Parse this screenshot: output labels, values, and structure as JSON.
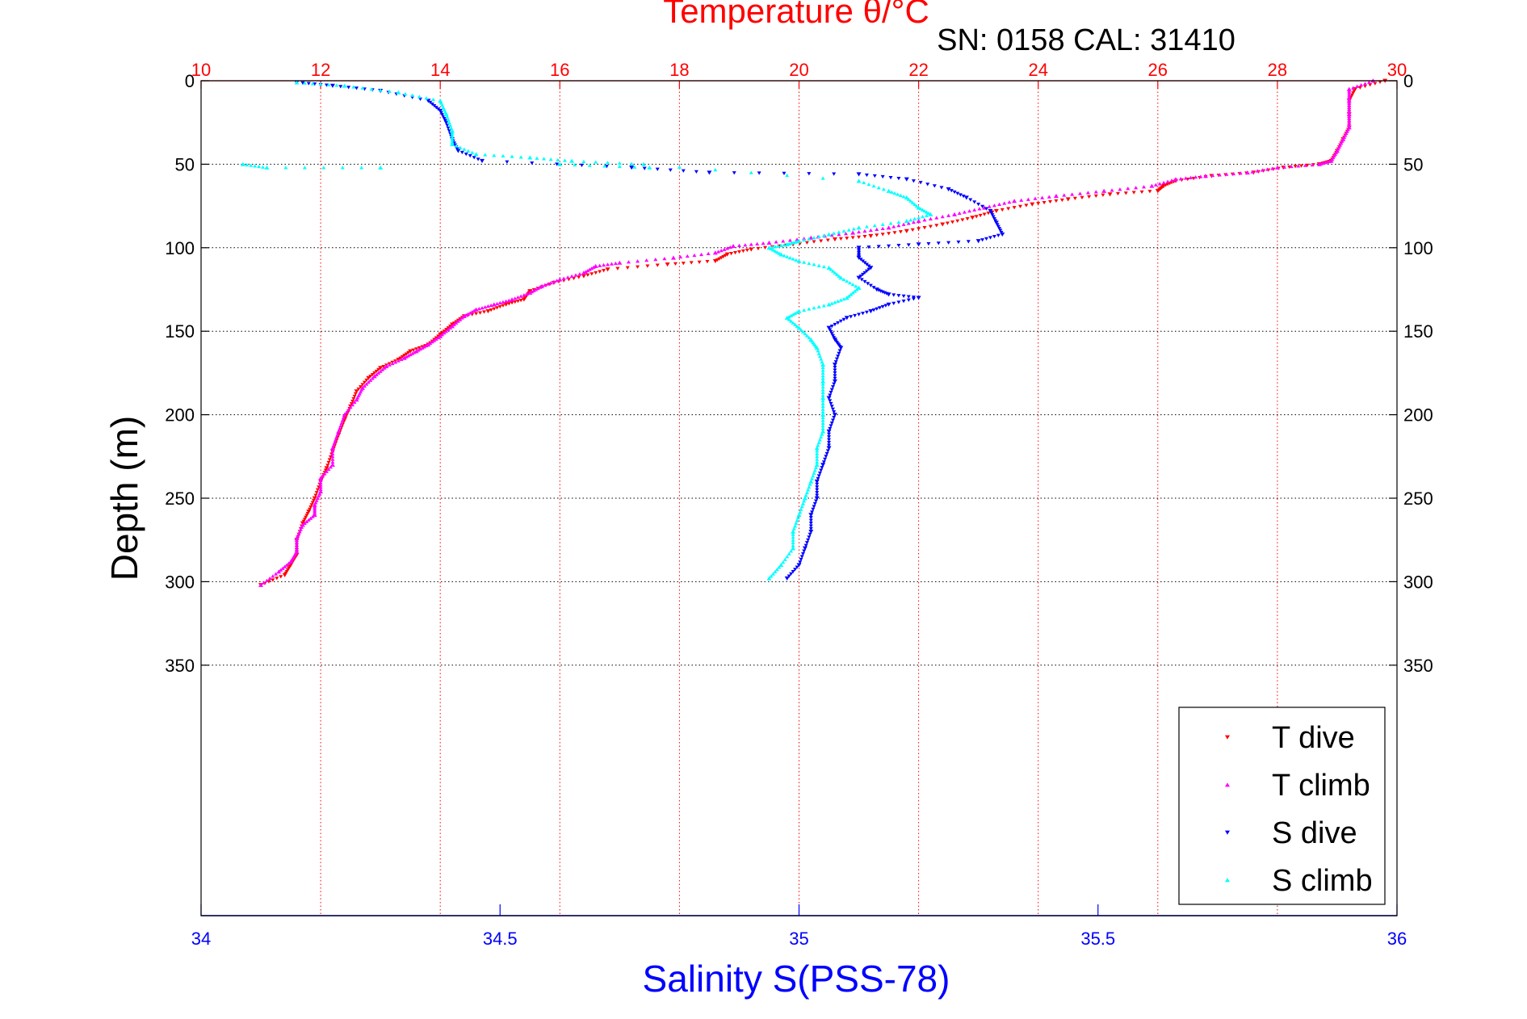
{
  "chart_data": {
    "type": "scatter",
    "title": "Temperature θ/°C",
    "subtitle": "SN: 0158  CAL: 31410",
    "xlabel_bottom": "Salinity S(PSS-78)",
    "ylabel": "Depth (m)",
    "temperature_axis": {
      "range": [
        10,
        30
      ],
      "ticks": [
        10,
        12,
        14,
        16,
        18,
        20,
        22,
        24,
        26,
        28,
        30
      ],
      "tick_labels": [
        "10",
        "12",
        "14",
        "16",
        "18",
        "20",
        "22",
        "24",
        "26",
        "28",
        "30"
      ]
    },
    "salinity_axis": {
      "range": [
        34,
        36
      ],
      "ticks": [
        34,
        34.5,
        35,
        35.5,
        36
      ],
      "tick_labels": [
        "34",
        "34.5",
        "35",
        "35.5",
        "36"
      ]
    },
    "depth_axis": {
      "range": [
        0,
        500
      ],
      "reversed": true,
      "ticks": [
        0,
        50,
        100,
        150,
        200,
        250,
        300,
        350
      ],
      "tick_labels": [
        "0",
        "50",
        "100",
        "150",
        "200",
        "250",
        "300",
        "350"
      ]
    },
    "grid": true,
    "legend_position": "bottom-right",
    "series": [
      {
        "name": "T dive",
        "axis": "temperature",
        "color": "#ff0000",
        "marker": "triangle-down",
        "points": [
          [
            29.8,
            0
          ],
          [
            29.3,
            5
          ],
          [
            29.2,
            12
          ],
          [
            29.2,
            20
          ],
          [
            29.2,
            28
          ],
          [
            29.1,
            35
          ],
          [
            29.0,
            42
          ],
          [
            28.9,
            48
          ],
          [
            28.7,
            50
          ],
          [
            28.1,
            52
          ],
          [
            27.6,
            55
          ],
          [
            26.9,
            57
          ],
          [
            26.3,
            60
          ],
          [
            26.1,
            63
          ],
          [
            26.0,
            66
          ],
          [
            25.2,
            68
          ],
          [
            24.5,
            71
          ],
          [
            23.9,
            74
          ],
          [
            23.3,
            78
          ],
          [
            22.9,
            82
          ],
          [
            22.4,
            86
          ],
          [
            21.8,
            90
          ],
          [
            21.2,
            93
          ],
          [
            20.6,
            95
          ],
          [
            19.9,
            98
          ],
          [
            19.2,
            101
          ],
          [
            18.8,
            104
          ],
          [
            18.6,
            108
          ],
          [
            17.8,
            110
          ],
          [
            16.8,
            113
          ],
          [
            16.4,
            117
          ],
          [
            15.9,
            121
          ],
          [
            15.5,
            126
          ],
          [
            15.4,
            131
          ],
          [
            15.1,
            134
          ],
          [
            14.8,
            138
          ],
          [
            14.4,
            141
          ],
          [
            14.2,
            146
          ],
          [
            14.0,
            152
          ],
          [
            13.8,
            158
          ],
          [
            13.5,
            162
          ],
          [
            13.3,
            167
          ],
          [
            13.0,
            172
          ],
          [
            12.8,
            178
          ],
          [
            12.6,
            186
          ],
          [
            12.5,
            195
          ],
          [
            12.4,
            203
          ],
          [
            12.3,
            212
          ],
          [
            12.2,
            222
          ],
          [
            12.1,
            232
          ],
          [
            12.0,
            240
          ],
          [
            11.9,
            250
          ],
          [
            11.8,
            258
          ],
          [
            11.7,
            265
          ],
          [
            11.6,
            275
          ],
          [
            11.6,
            284
          ],
          [
            11.5,
            290
          ],
          [
            11.4,
            296
          ],
          [
            11.0,
            302
          ]
        ]
      },
      {
        "name": "T climb",
        "axis": "temperature",
        "color": "#ff00ff",
        "marker": "triangle-up",
        "points": [
          [
            29.6,
            0
          ],
          [
            29.2,
            5
          ],
          [
            29.2,
            12
          ],
          [
            29.2,
            20
          ],
          [
            29.2,
            28
          ],
          [
            29.1,
            35
          ],
          [
            29.0,
            42
          ],
          [
            28.9,
            48
          ],
          [
            28.7,
            50
          ],
          [
            28.0,
            52
          ],
          [
            27.5,
            55
          ],
          [
            26.8,
            57
          ],
          [
            26.3,
            59
          ],
          [
            25.9,
            63
          ],
          [
            25.1,
            66
          ],
          [
            24.3,
            69
          ],
          [
            23.6,
            72
          ],
          [
            23.1,
            76
          ],
          [
            22.6,
            80
          ],
          [
            22.0,
            84
          ],
          [
            21.5,
            88
          ],
          [
            20.9,
            91
          ],
          [
            20.2,
            94
          ],
          [
            19.5,
            97
          ],
          [
            18.9,
            99
          ],
          [
            18.6,
            103
          ],
          [
            17.9,
            106
          ],
          [
            17.0,
            109
          ],
          [
            16.6,
            111
          ],
          [
            16.4,
            115
          ],
          [
            16.0,
            119
          ],
          [
            15.7,
            123
          ],
          [
            15.5,
            127
          ],
          [
            15.2,
            131
          ],
          [
            14.9,
            134
          ],
          [
            14.6,
            137
          ],
          [
            14.4,
            141
          ],
          [
            14.2,
            147
          ],
          [
            14.0,
            153
          ],
          [
            13.8,
            158
          ],
          [
            13.6,
            162
          ],
          [
            13.4,
            166
          ],
          [
            13.1,
            171
          ],
          [
            12.9,
            177
          ],
          [
            12.7,
            184
          ],
          [
            12.6,
            191
          ],
          [
            12.4,
            200
          ],
          [
            12.3,
            210
          ],
          [
            12.2,
            220
          ],
          [
            12.2,
            230
          ],
          [
            12.0,
            238
          ],
          [
            12.0,
            246
          ],
          [
            11.9,
            254
          ],
          [
            11.9,
            260
          ],
          [
            11.7,
            266
          ],
          [
            11.6,
            274
          ],
          [
            11.6,
            282
          ],
          [
            11.5,
            288
          ],
          [
            11.3,
            294
          ],
          [
            11.0,
            302
          ]
        ]
      },
      {
        "name": "S dive",
        "axis": "salinity",
        "color": "#0000ff",
        "marker": "triangle-down",
        "points": [
          [
            34.16,
            1
          ],
          [
            34.22,
            3
          ],
          [
            34.3,
            6
          ],
          [
            34.38,
            12
          ],
          [
            34.4,
            18
          ],
          [
            34.41,
            25
          ],
          [
            34.42,
            35
          ],
          [
            34.43,
            42
          ],
          [
            34.47,
            48
          ],
          [
            34.72,
            52
          ],
          [
            34.85,
            55
          ],
          [
            35.1,
            56
          ],
          [
            35.18,
            59
          ],
          [
            35.25,
            65
          ],
          [
            35.28,
            70
          ],
          [
            35.32,
            78
          ],
          [
            35.33,
            85
          ],
          [
            35.34,
            92
          ],
          [
            35.3,
            96
          ],
          [
            35.2,
            98
          ],
          [
            35.1,
            100
          ],
          [
            35.1,
            106
          ],
          [
            35.12,
            112
          ],
          [
            35.1,
            118
          ],
          [
            35.13,
            125
          ],
          [
            35.15,
            128
          ],
          [
            35.2,
            130
          ],
          [
            35.15,
            134
          ],
          [
            35.12,
            138
          ],
          [
            35.08,
            142
          ],
          [
            35.05,
            148
          ],
          [
            35.06,
            155
          ],
          [
            35.07,
            160
          ],
          [
            35.06,
            170
          ],
          [
            35.06,
            180
          ],
          [
            35.05,
            190
          ],
          [
            35.06,
            200
          ],
          [
            35.05,
            210
          ],
          [
            35.05,
            220
          ],
          [
            35.04,
            230
          ],
          [
            35.03,
            240
          ],
          [
            35.03,
            250
          ],
          [
            35.02,
            260
          ],
          [
            35.02,
            270
          ],
          [
            35.01,
            280
          ],
          [
            35.0,
            290
          ],
          [
            34.98,
            298
          ]
        ]
      },
      {
        "name": "S climb",
        "axis": "salinity",
        "color": "#00ffff",
        "marker": "triangle-up",
        "points": [
          [
            34.16,
            1
          ],
          [
            34.24,
            3
          ],
          [
            34.33,
            7
          ],
          [
            34.4,
            12
          ],
          [
            34.41,
            20
          ],
          [
            34.42,
            30
          ],
          [
            34.42,
            38
          ],
          [
            34.46,
            44
          ],
          [
            34.55,
            46
          ],
          [
            34.62,
            48
          ],
          [
            34.74,
            50
          ],
          [
            35.1,
            60
          ],
          [
            35.15,
            66
          ],
          [
            35.18,
            70
          ],
          [
            35.2,
            76
          ],
          [
            35.22,
            80
          ],
          [
            35.18,
            84
          ],
          [
            35.1,
            88
          ],
          [
            35.05,
            92
          ],
          [
            35.0,
            96
          ],
          [
            34.98,
            98
          ],
          [
            34.95,
            100
          ],
          [
            34.97,
            104
          ],
          [
            35.0,
            108
          ],
          [
            35.05,
            112
          ],
          [
            35.07,
            118
          ],
          [
            35.1,
            124
          ],
          [
            35.08,
            130
          ],
          [
            35.05,
            134
          ],
          [
            35.0,
            138
          ],
          [
            34.98,
            142
          ],
          [
            35.0,
            148
          ],
          [
            35.02,
            155
          ],
          [
            35.03,
            160
          ],
          [
            35.04,
            170
          ],
          [
            35.04,
            180
          ],
          [
            35.04,
            190
          ],
          [
            35.04,
            200
          ],
          [
            35.04,
            210
          ],
          [
            35.03,
            220
          ],
          [
            35.03,
            230
          ],
          [
            35.02,
            240
          ],
          [
            35.01,
            250
          ],
          [
            35.0,
            260
          ],
          [
            34.99,
            270
          ],
          [
            34.99,
            280
          ],
          [
            34.97,
            290
          ],
          [
            34.95,
            298
          ],
          [
            34.07,
            50
          ],
          [
            34.11,
            52
          ],
          [
            34.3,
            52
          ],
          [
            34.6,
            50
          ],
          [
            34.75,
            52
          ]
        ]
      }
    ],
    "legend": [
      "T dive",
      "T climb",
      "S dive",
      "S climb"
    ]
  }
}
